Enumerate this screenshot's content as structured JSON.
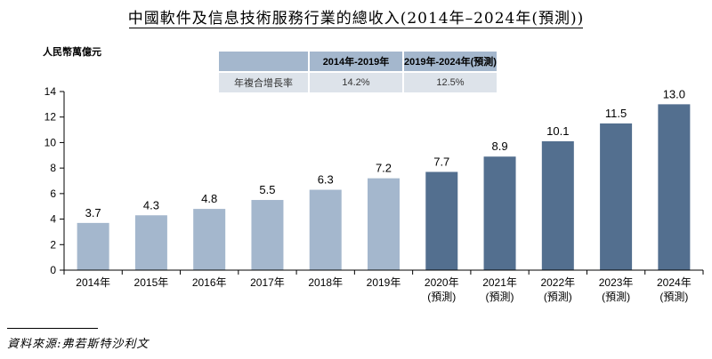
{
  "title": "中國軟件及信息技術服務行業的總收入(2014年–2024年(預測))",
  "unit_label": "人民幣萬億元",
  "cagr_table": {
    "header_period1": "2014年-2019年",
    "header_period2": "2019年-2024年(預測)",
    "row_label": "年複合增長率",
    "value_period1": "14.2%",
    "value_period2": "12.5%"
  },
  "chart_data": {
    "type": "bar",
    "title": "中國軟件及信息技術服務行業的總收入(2014年–2024年(預測))",
    "ylabel": "人民幣萬億元",
    "xlabel": "",
    "ylim": [
      0,
      14
    ],
    "yticks": [
      0,
      2,
      4,
      6,
      8,
      10,
      12,
      14
    ],
    "categories": [
      "2014年",
      "2015年",
      "2016年",
      "2017年",
      "2018年",
      "2019年",
      "2020年",
      "2021年",
      "2022年",
      "2023年",
      "2024年"
    ],
    "forecast_suffix": "(預測)",
    "forecast_flags": [
      false,
      false,
      false,
      false,
      false,
      false,
      true,
      true,
      true,
      true,
      true
    ],
    "values": [
      3.7,
      4.3,
      4.8,
      5.5,
      6.3,
      7.2,
      7.7,
      8.9,
      10.1,
      11.5,
      13.0
    ],
    "value_labels": [
      "3.7",
      "4.3",
      "4.8",
      "5.5",
      "6.3",
      "7.2",
      "7.7",
      "8.9",
      "10.1",
      "11.5",
      "13.0"
    ],
    "colors": {
      "historical": "#a4b7cd",
      "forecast": "#536f8f"
    }
  },
  "source_note": "資料來源:弗若斯特沙利文"
}
